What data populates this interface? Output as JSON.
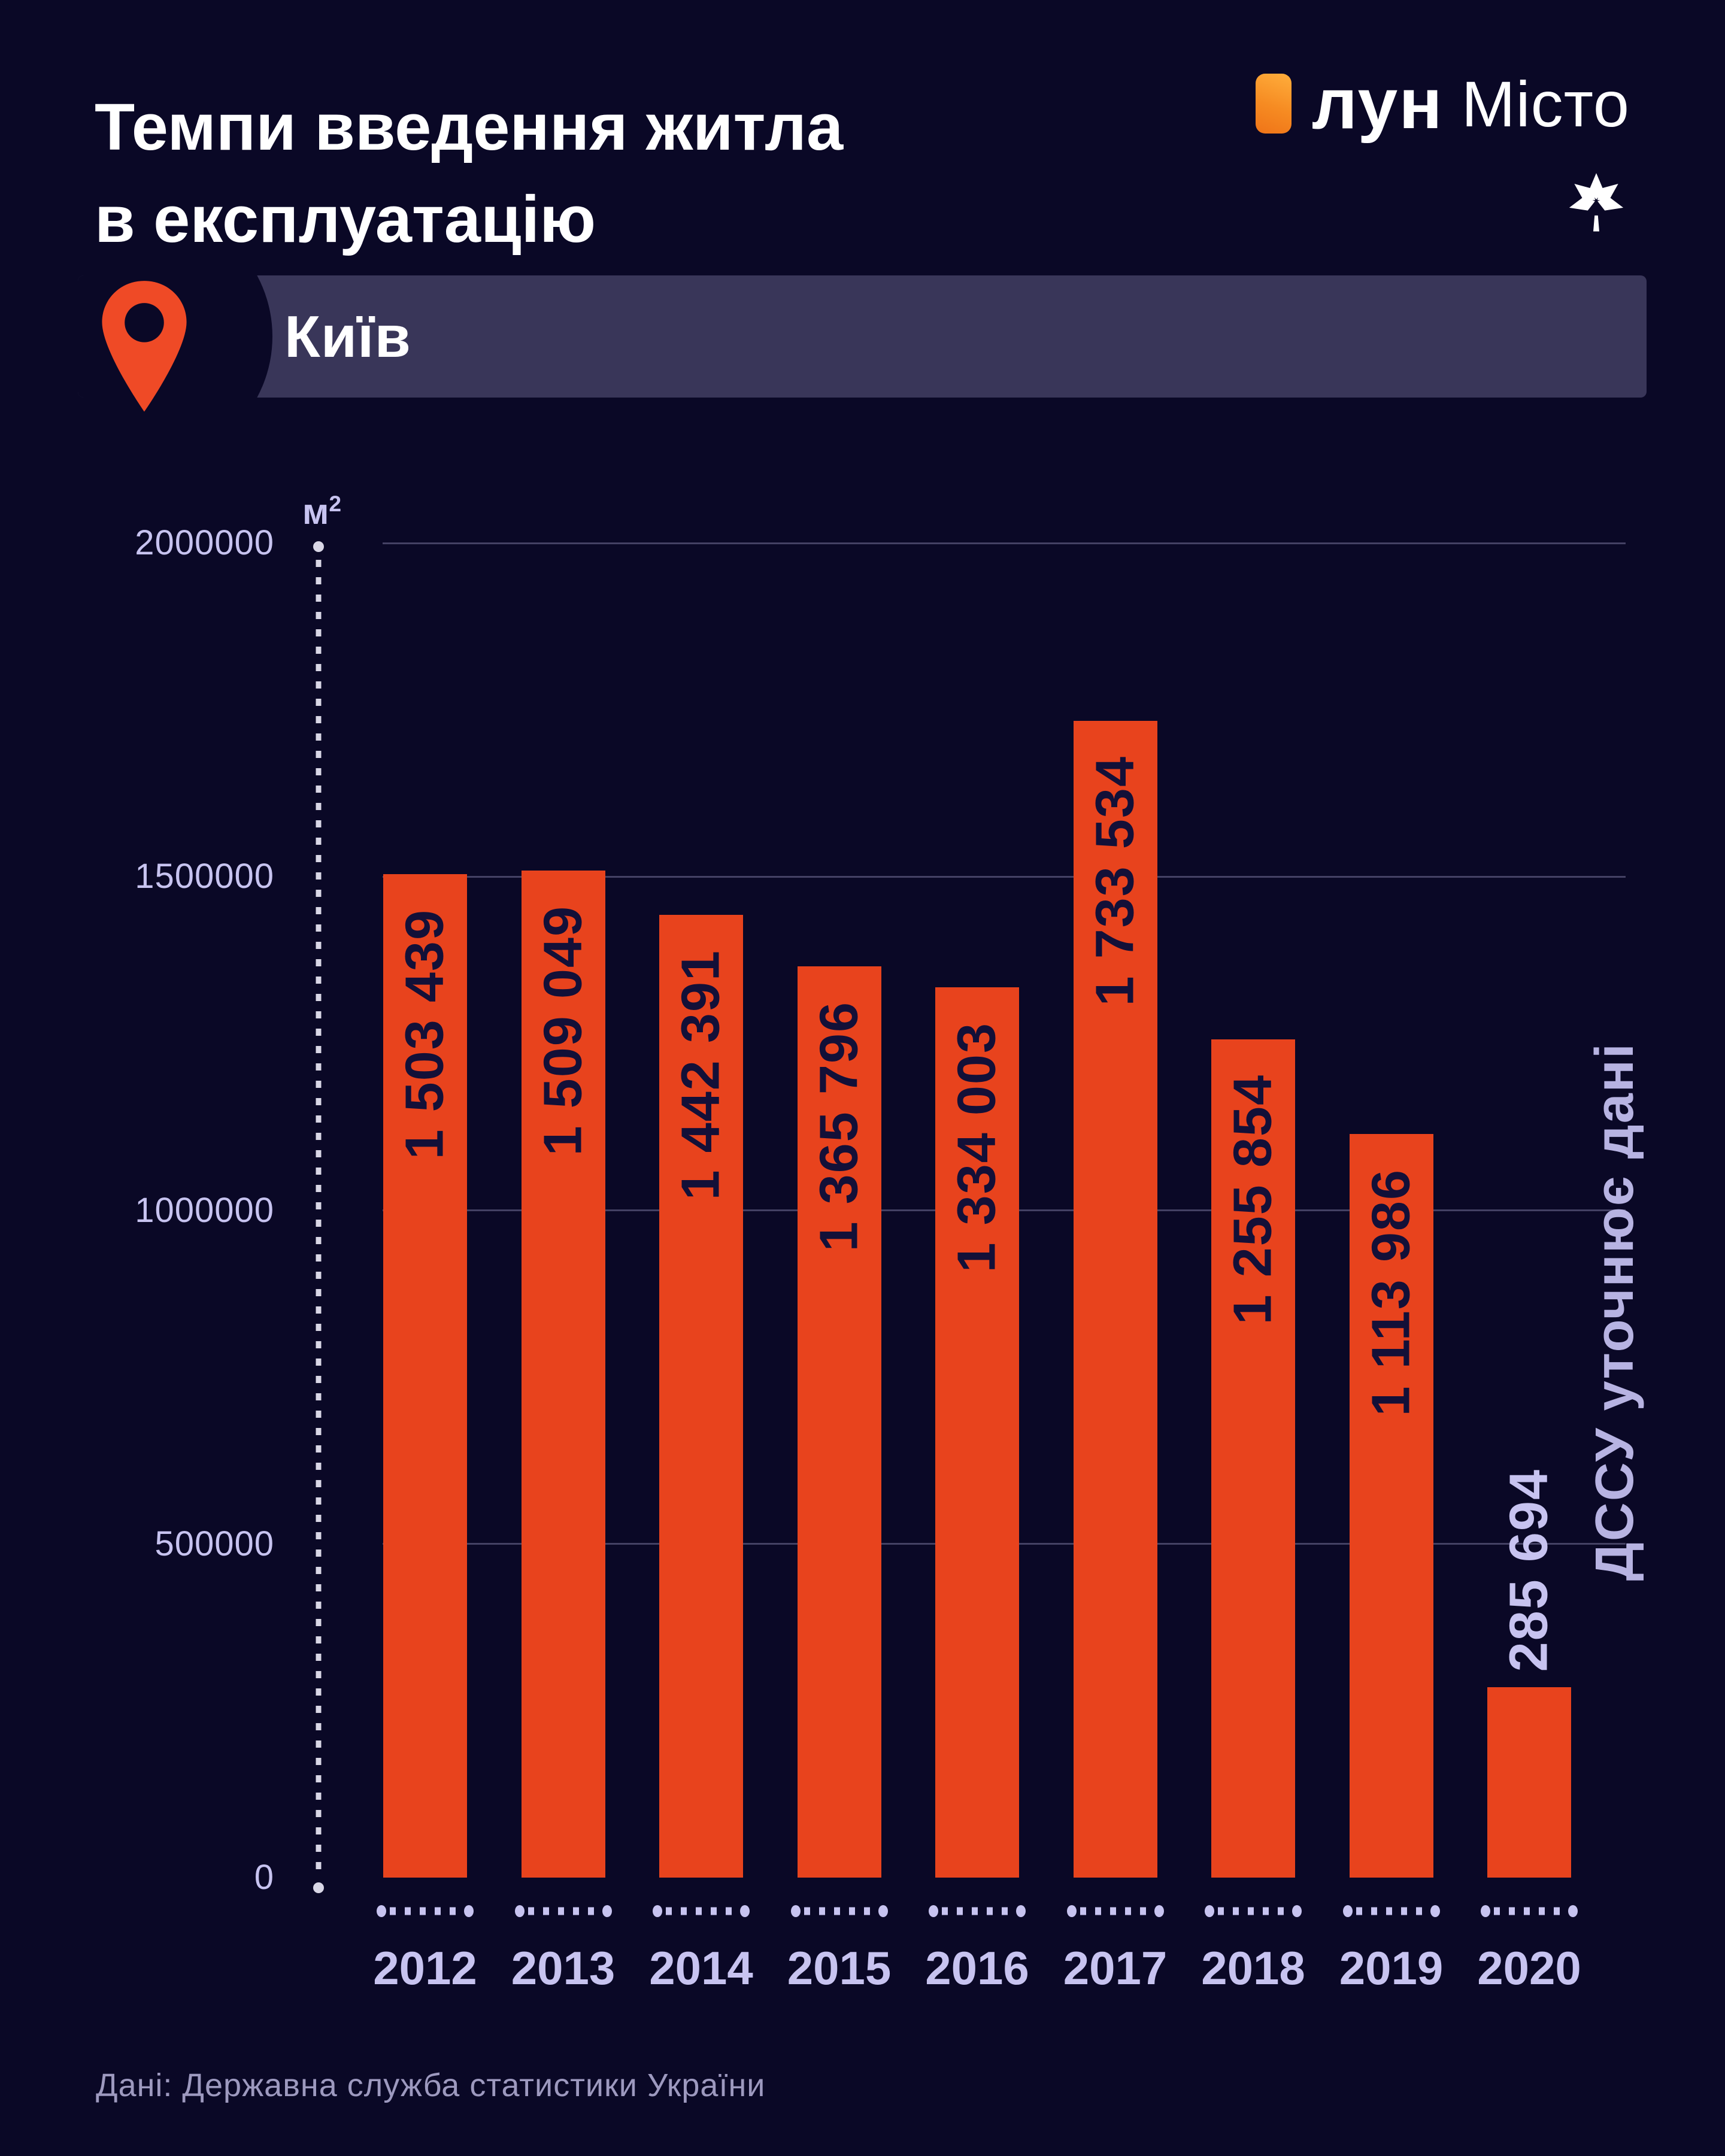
{
  "header": {
    "title_line1": "Темпи введення житла",
    "title_line2": "в експлуатацію"
  },
  "logo": {
    "brand_bold": "лун",
    "brand_light": "Місто"
  },
  "location": {
    "name": "Київ"
  },
  "chart_data": {
    "type": "bar",
    "title": "Темпи введення житла в експлуатацію",
    "unit": "м",
    "unit_exponent": "2",
    "categories": [
      "2012",
      "2013",
      "2014",
      "2015",
      "2016",
      "2017",
      "2018",
      "2019",
      "2020"
    ],
    "values": [
      1503439,
      1509049,
      1442391,
      1365796,
      1334003,
      1733534,
      1255854,
      1113986,
      285694
    ],
    "value_labels": [
      "1 503 439",
      "1 509 049",
      "1 442 391",
      "1 365 796",
      "1 334 003",
      "1 733 534",
      "1 255 854",
      "1 113 986",
      "285 694"
    ],
    "ylim": [
      0,
      2000000
    ],
    "yticks": [
      {
        "value": 2000000,
        "label": "2000000"
      },
      {
        "value": 1500000,
        "label": "1500000"
      },
      {
        "value": 1000000,
        "label": "1000000"
      },
      {
        "value": 500000,
        "label": "500000"
      },
      {
        "value": 0,
        "label": "0"
      }
    ],
    "grid": true,
    "legend": "none",
    "bar_color": "#E8431D",
    "label_color_inside": "#131038",
    "label_color_outside": "#C7C3F0",
    "axis_dot_color": "#D9D7E6",
    "tick_dot_color": "#C7C3F0",
    "outside_label_category": "2020",
    "annotation": {
      "category": "2020",
      "text": "ДССУ уточнює дані"
    }
  },
  "footer": {
    "source": "Дані: Державна служба статистики України"
  }
}
